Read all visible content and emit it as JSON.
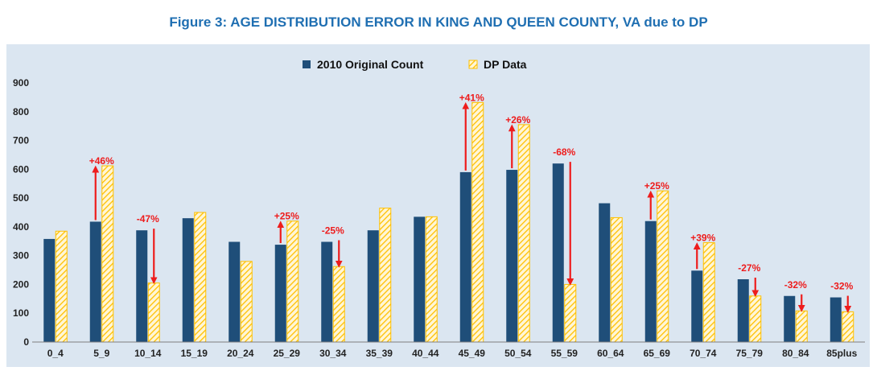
{
  "chart_data": {
    "type": "bar",
    "title": "Figure 3: AGE DISTRIBUTION ERROR IN KING AND QUEEN COUNTY, VA due to DP",
    "categories": [
      "0_4",
      "5_9",
      "10_14",
      "15_19",
      "20_24",
      "25_29",
      "30_34",
      "35_39",
      "40_44",
      "45_49",
      "50_54",
      "55_59",
      "60_64",
      "65_69",
      "70_74",
      "75_79",
      "80_84",
      "85plus"
    ],
    "series": [
      {
        "name": "2010 Original Count",
        "color": "#1f4e79",
        "values": [
          358,
          418,
          388,
          430,
          348,
          338,
          348,
          388,
          435,
          590,
          598,
          620,
          482,
          420,
          248,
          218,
          160,
          155
        ]
      },
      {
        "name": "DP Data",
        "color": "#ffc000",
        "values": [
          385,
          612,
          205,
          450,
          280,
          420,
          262,
          465,
          435,
          832,
          755,
          200,
          432,
          525,
          345,
          160,
          108,
          105
        ]
      }
    ],
    "ylim": [
      0,
      900
    ],
    "yticks": [
      0,
      100,
      200,
      300,
      400,
      500,
      600,
      700,
      800,
      900
    ],
    "legend": "top-center",
    "grid": false,
    "annotations": [
      {
        "category": "5_9",
        "label": "+46%",
        "direction": "up"
      },
      {
        "category": "10_14",
        "label": "-47%",
        "direction": "down"
      },
      {
        "category": "25_29",
        "label": "+25%",
        "direction": "up"
      },
      {
        "category": "30_34",
        "label": "-25%",
        "direction": "down"
      },
      {
        "category": "45_49",
        "label": "+41%",
        "direction": "up"
      },
      {
        "category": "50_54",
        "label": "+26%",
        "direction": "up"
      },
      {
        "category": "55_59",
        "label": "-68%",
        "direction": "down"
      },
      {
        "category": "65_69",
        "label": "+25%",
        "direction": "up"
      },
      {
        "category": "70_74",
        "label": "+39%",
        "direction": "up"
      },
      {
        "category": "75_79",
        "label": "-27%",
        "direction": "down"
      },
      {
        "category": "80_84",
        "label": "-32%",
        "direction": "down"
      },
      {
        "category": "85plus",
        "label": "-32%",
        "direction": "down"
      }
    ],
    "annotation_color": "#ee1c1c"
  }
}
